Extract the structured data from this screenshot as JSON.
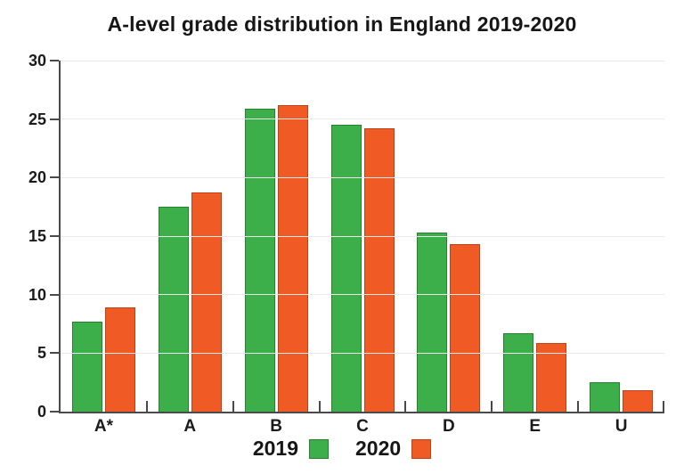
{
  "title": "A-level grade distribution in England 2019-2020",
  "colors": {
    "series_2019": "#3CAE4A",
    "series_2019_border": "#27822F",
    "series_2020": "#F05A25",
    "series_2020_border": "#BC4318",
    "axis": "#4a4a4a",
    "gridline": "#e9e9e9",
    "text": "#161616",
    "background": "#ffffff"
  },
  "chart_data": {
    "type": "bar",
    "title": "A-level grade distribution in England 2019-2020",
    "categories": [
      "A*",
      "A",
      "B",
      "C",
      "D",
      "E",
      "U"
    ],
    "series": [
      {
        "name": "2019",
        "color": "#3CAE4A",
        "border": "#27822F",
        "values": [
          7.7,
          17.5,
          25.9,
          24.5,
          15.3,
          6.7,
          2.5
        ]
      },
      {
        "name": "2020",
        "color": "#F05A25",
        "border": "#BC4318",
        "values": [
          8.9,
          18.7,
          26.2,
          24.2,
          14.3,
          5.9,
          1.8
        ]
      }
    ],
    "xlabel": "",
    "ylabel": "",
    "ylim": [
      0,
      30
    ],
    "yticks": [
      0,
      5,
      10,
      15,
      20,
      25,
      30
    ],
    "grid": true,
    "legend_position": "bottom"
  },
  "legend": {
    "items": [
      {
        "label": "2019"
      },
      {
        "label": "2020"
      }
    ]
  }
}
